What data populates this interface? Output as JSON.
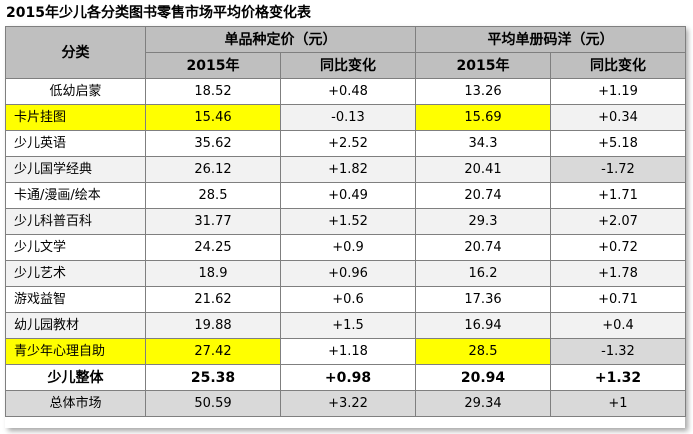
{
  "title": "2015年少儿各分类图书零售市场平均价格变化表",
  "header": {
    "category": "分类",
    "group1": "单品种定价（元）",
    "group2": "平均单册码洋（元）",
    "year": "2015年",
    "change": "同比变化"
  },
  "rows": [
    {
      "name": "低幼启蒙",
      "price": "18.52",
      "price_chg": "+0.48",
      "avg": "13.26",
      "avg_chg": "+1.19"
    },
    {
      "name": "卡片挂图",
      "price": "15.46",
      "price_chg": "-0.13",
      "avg": "15.69",
      "avg_chg": "+0.34"
    },
    {
      "name": "少儿英语",
      "price": "35.62",
      "price_chg": "+2.52",
      "avg": "34.3",
      "avg_chg": "+5.18"
    },
    {
      "name": "少儿国学经典",
      "price": "26.12",
      "price_chg": "+1.82",
      "avg": "20.41",
      "avg_chg": "-1.72"
    },
    {
      "name": "卡通/漫画/绘本",
      "price": "28.5",
      "price_chg": "+0.49",
      "avg": "20.74",
      "avg_chg": "+1.71"
    },
    {
      "name": "少儿科普百科",
      "price": "31.77",
      "price_chg": "+1.52",
      "avg": "29.3",
      "avg_chg": "+2.07"
    },
    {
      "name": "少儿文学",
      "price": "24.25",
      "price_chg": "+0.9",
      "avg": "20.74",
      "avg_chg": "+0.72"
    },
    {
      "name": "少儿艺术",
      "price": "18.9",
      "price_chg": "+0.96",
      "avg": "16.2",
      "avg_chg": "+1.78"
    },
    {
      "name": "游戏益智",
      "price": "21.62",
      "price_chg": "+0.6",
      "avg": "17.36",
      "avg_chg": "+0.71"
    },
    {
      "name": "幼儿园教材",
      "price": "19.88",
      "price_chg": "+1.5",
      "avg": "16.94",
      "avg_chg": "+0.4"
    },
    {
      "name": "青少年心理自助",
      "price": "27.42",
      "price_chg": "+1.18",
      "avg": "28.5",
      "avg_chg": "-1.32"
    }
  ],
  "total": {
    "name": "少儿整体",
    "price": "25.38",
    "price_chg": "+0.98",
    "avg": "20.94",
    "avg_chg": "+1.32"
  },
  "market": {
    "name": "总体市场",
    "price": "50.59",
    "price_chg": "+3.22",
    "avg": "29.34",
    "avg_chg": "+1"
  },
  "colors": {
    "header_bg": "#bfbfbf",
    "highlight": "#ffff00",
    "grey_cell": "#d9d9d9"
  }
}
